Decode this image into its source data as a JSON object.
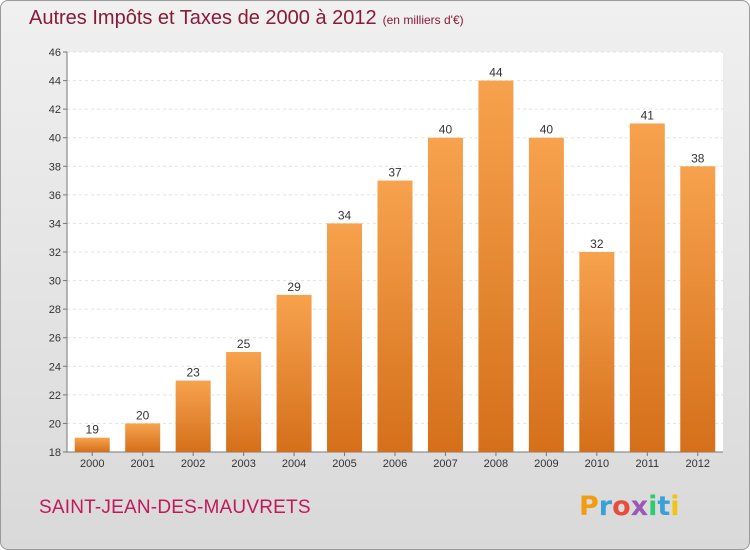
{
  "header": {
    "title": "Autres Impôts et Taxes de 2000 à 2012",
    "unit": "(en milliers d'€)"
  },
  "footer": {
    "commune": "SAINT-JEAN-DES-MAUVRETS",
    "logo": "Proxiti"
  },
  "colors": {
    "bar_top": "#f7a24e",
    "bar_bottom": "#d56f1a",
    "title": "#8a1a3a",
    "commune": "#c2185b",
    "logo": [
      "#f39c12",
      "#3aa0d8",
      "#e74c3c",
      "#9b59b6",
      "#2ecc71",
      "#3aa0d8",
      "#f1c40f"
    ]
  },
  "chart_data": {
    "type": "bar",
    "title": "Autres Impôts et Taxes de 2000 à 2012",
    "subtitle": "(en milliers d'€)",
    "xlabel": "",
    "ylabel": "",
    "categories": [
      "2000",
      "2001",
      "2002",
      "2003",
      "2004",
      "2005",
      "2006",
      "2007",
      "2008",
      "2009",
      "2010",
      "2011",
      "2012"
    ],
    "values": [
      19,
      20,
      23,
      25,
      29,
      34,
      37,
      40,
      44,
      40,
      32,
      41,
      38
    ],
    "ylim": [
      18,
      46
    ],
    "yticks": [
      18,
      20,
      22,
      24,
      26,
      28,
      30,
      32,
      34,
      36,
      38,
      40,
      42,
      44,
      46
    ],
    "grid": true,
    "data_labels": true,
    "legend": "none"
  }
}
